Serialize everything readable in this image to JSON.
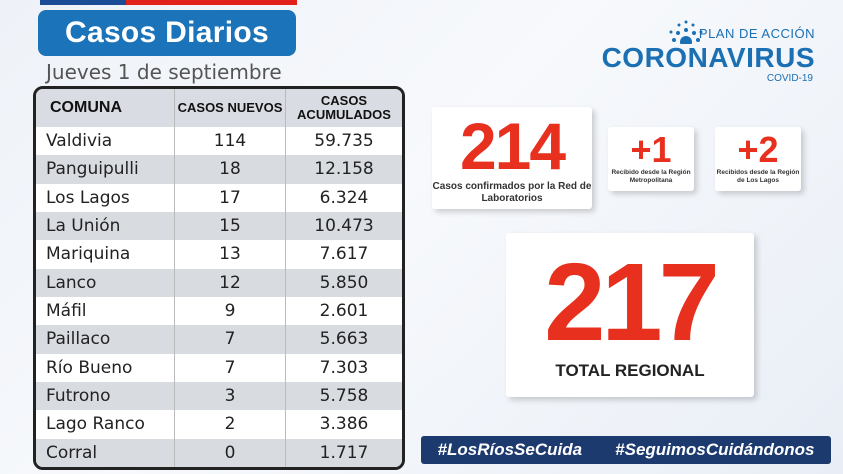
{
  "header": {
    "title": "Casos Diarios",
    "date": "Jueves 1 de septiembre"
  },
  "table": {
    "headers": [
      "COMUNA",
      "CASOS NUEVOS",
      "CASOS ACUMULADOS"
    ],
    "rows": [
      {
        "comuna": "Valdivia",
        "nuevos": "114",
        "acumulados": "59.735"
      },
      {
        "comuna": "Panguipulli",
        "nuevos": "18",
        "acumulados": "12.158"
      },
      {
        "comuna": "Los Lagos",
        "nuevos": "17",
        "acumulados": "6.324"
      },
      {
        "comuna": "La Unión",
        "nuevos": "15",
        "acumulados": "10.473"
      },
      {
        "comuna": "Mariquina",
        "nuevos": "13",
        "acumulados": "7.617"
      },
      {
        "comuna": "Lanco",
        "nuevos": "12",
        "acumulados": "5.850"
      },
      {
        "comuna": "Máfil",
        "nuevos": "9",
        "acumulados": "2.601"
      },
      {
        "comuna": "Paillaco",
        "nuevos": "7",
        "acumulados": "5.663"
      },
      {
        "comuna": "Río Bueno",
        "nuevos": "7",
        "acumulados": "7.303"
      },
      {
        "comuna": "Futrono",
        "nuevos": "3",
        "acumulados": "5.758"
      },
      {
        "comuna": "Lago Ranco",
        "nuevos": "2",
        "acumulados": "3.386"
      },
      {
        "comuna": "Corral",
        "nuevos": "0",
        "acumulados": "1.717"
      }
    ]
  },
  "logo": {
    "plan": "PLAN DE ACCIÓN",
    "name": "CORONAVIRUS",
    "sub": "COVID-19"
  },
  "stats": {
    "lab": {
      "value": "214",
      "label": "Casos confirmados por la Red de Laboratorios"
    },
    "rm": {
      "value": "+1",
      "label": "Recibido desde la Región Metropolitana"
    },
    "lr": {
      "value": "+2",
      "label": "Recibidos desde la Región de Los Lagos"
    },
    "total": {
      "value": "217",
      "label": "TOTAL REGIONAL"
    }
  },
  "hashtags": [
    "#LosRíosSeCuida",
    "#SeguimosCuidándonos"
  ],
  "colors": {
    "title_bg": "#1b73b9",
    "accent_red": "#e8301e",
    "hashtag_bg": "#1c3a6e",
    "logo_blue": "#1b6fb3"
  }
}
